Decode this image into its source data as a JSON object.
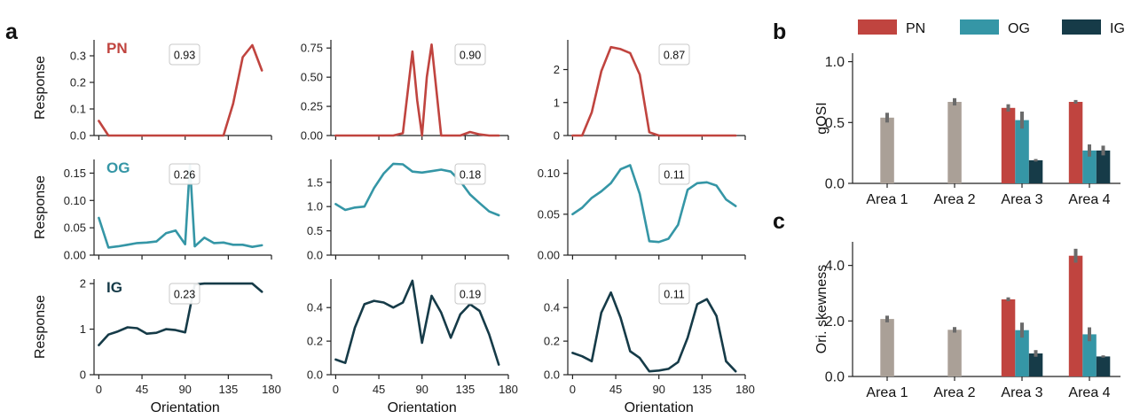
{
  "panel_labels": [
    "a",
    "b",
    "c"
  ],
  "colors": {
    "PN": "#c0443f",
    "OG": "#3596a6",
    "IG": "#163b48",
    "area": "#aaa097",
    "err": "#6b6b6b",
    "axis": "#222222"
  },
  "chart_data": [
    {
      "id": "a-PN-1",
      "type": "line",
      "row_label": "PN",
      "annotation": "0.93",
      "color": "PN",
      "x": [
        0,
        10,
        20,
        30,
        40,
        50,
        60,
        70,
        80,
        90,
        100,
        110,
        120,
        130,
        140,
        150,
        160,
        170
      ],
      "y": [
        0.055,
        0,
        0,
        0,
        0,
        0,
        0,
        0,
        0,
        0,
        0,
        0,
        0,
        0,
        0.12,
        0.295,
        0.34,
        0.245
      ],
      "ylim": [
        0,
        0.36
      ],
      "yticks": [
        0.0,
        0.1,
        0.2,
        0.3
      ],
      "ytick_labels": [
        "0.0",
        "0.1",
        "0.2",
        "0.3"
      ],
      "xlim": [
        -5,
        180
      ],
      "xticks": [
        0,
        45,
        90,
        135,
        180
      ],
      "ylabel": "Response",
      "xlabel": ""
    },
    {
      "id": "a-PN-2",
      "type": "line",
      "annotation": "0.90",
      "color": "PN",
      "x": [
        0,
        10,
        20,
        30,
        40,
        50,
        60,
        70,
        80,
        85,
        90,
        95,
        100,
        110,
        120,
        130,
        140,
        150,
        160,
        170
      ],
      "y": [
        0,
        0,
        0,
        0,
        0,
        0,
        0,
        0.02,
        0.72,
        0.3,
        0,
        0.5,
        0.78,
        0,
        0,
        0,
        0.03,
        0.01,
        0,
        0
      ],
      "ylim": [
        0,
        0.82
      ],
      "yticks": [
        0,
        0.25,
        0.5,
        0.75
      ],
      "ytick_labels": [
        "0.00",
        "0.25",
        "0.50",
        "0.75"
      ],
      "xlim": [
        -5,
        180
      ],
      "xticks": [
        0,
        45,
        90,
        135,
        180
      ],
      "ylabel": "",
      "xlabel": ""
    },
    {
      "id": "a-PN-3",
      "type": "line",
      "annotation": "0.87",
      "color": "PN",
      "x": [
        0,
        10,
        20,
        30,
        40,
        50,
        60,
        70,
        80,
        90,
        100,
        110,
        120,
        130,
        140,
        150,
        160,
        170
      ],
      "y": [
        0,
        0,
        0.7,
        1.95,
        2.68,
        2.62,
        2.5,
        1.85,
        0.1,
        0,
        0,
        0,
        0,
        0,
        0,
        0,
        0,
        0
      ],
      "ylim": [
        0,
        2.9
      ],
      "yticks": [
        0,
        1,
        2
      ],
      "ytick_labels": [
        "0",
        "1",
        "2"
      ],
      "xlim": [
        -5,
        180
      ],
      "xticks": [
        0,
        45,
        90,
        135,
        180
      ],
      "ylabel": "",
      "xlabel": ""
    },
    {
      "id": "a-OG-1",
      "type": "line",
      "row_label": "OG",
      "annotation": "0.26",
      "color": "OG",
      "x": [
        0,
        10,
        20,
        30,
        40,
        50,
        60,
        70,
        80,
        90,
        95,
        100,
        110,
        120,
        130,
        140,
        150,
        160,
        170
      ],
      "y": [
        0.068,
        0.014,
        0.016,
        0.019,
        0.022,
        0.023,
        0.025,
        0.04,
        0.045,
        0.02,
        0.165,
        0.016,
        0.032,
        0.022,
        0.023,
        0.019,
        0.019,
        0.015,
        0.018
      ],
      "ylim": [
        0,
        0.175
      ],
      "yticks": [
        0,
        0.05,
        0.1,
        0.15
      ],
      "ytick_labels": [
        "0.00",
        "0.05",
        "0.10",
        "0.15"
      ],
      "xlim": [
        -5,
        180
      ],
      "xticks": [
        0,
        45,
        90,
        135,
        180
      ],
      "ylabel": "Response",
      "xlabel": ""
    },
    {
      "id": "a-OG-2",
      "type": "line",
      "annotation": "0.18",
      "color": "OG",
      "x": [
        0,
        10,
        20,
        30,
        40,
        50,
        60,
        70,
        80,
        90,
        100,
        110,
        120,
        130,
        140,
        150,
        160,
        170
      ],
      "y": [
        1.05,
        0.93,
        0.98,
        1.0,
        1.38,
        1.68,
        1.88,
        1.87,
        1.72,
        1.7,
        1.73,
        1.76,
        1.72,
        1.52,
        1.25,
        1.07,
        0.9,
        0.82
      ],
      "ylim": [
        0,
        1.97
      ],
      "yticks": [
        0,
        0.5,
        1.0,
        1.5
      ],
      "ytick_labels": [
        "0.0",
        "0.5",
        "1.0",
        "1.5"
      ],
      "xlim": [
        -5,
        180
      ],
      "xticks": [
        0,
        45,
        90,
        135,
        180
      ],
      "ylabel": "",
      "xlabel": ""
    },
    {
      "id": "a-OG-3",
      "type": "line",
      "annotation": "0.11",
      "color": "OG",
      "x": [
        0,
        10,
        20,
        30,
        40,
        50,
        60,
        70,
        80,
        90,
        100,
        110,
        120,
        130,
        140,
        150,
        160,
        170
      ],
      "y": [
        0.05,
        0.058,
        0.07,
        0.078,
        0.088,
        0.105,
        0.11,
        0.075,
        0.017,
        0.016,
        0.02,
        0.037,
        0.08,
        0.088,
        0.089,
        0.085,
        0.068,
        0.06
      ],
      "ylim": [
        0,
        0.117
      ],
      "yticks": [
        0,
        0.05,
        0.1
      ],
      "ytick_labels": [
        "0.00",
        "0.05",
        "0.10"
      ],
      "xlim": [
        -5,
        180
      ],
      "xticks": [
        0,
        45,
        90,
        135,
        180
      ],
      "ylabel": "",
      "xlabel": ""
    },
    {
      "id": "a-IG-1",
      "type": "line",
      "row_label": "IG",
      "annotation": "0.23",
      "color": "IG",
      "x": [
        0,
        10,
        20,
        30,
        40,
        50,
        60,
        70,
        80,
        90,
        100,
        110,
        120,
        130,
        140,
        150,
        160,
        170
      ],
      "y": [
        0.65,
        0.88,
        0.95,
        1.04,
        1.02,
        0.9,
        0.92,
        1.0,
        0.98,
        0.93,
        1.98,
        2.0,
        2.0,
        2.0,
        2.0,
        2.0,
        2.0,
        1.82
      ],
      "ylim": [
        0,
        2.1
      ],
      "yticks": [
        0,
        1,
        2
      ],
      "ytick_labels": [
        "0",
        "1",
        "2"
      ],
      "xlim": [
        -5,
        180
      ],
      "xticks": [
        0,
        45,
        90,
        135,
        180
      ],
      "xtick_labels": [
        "0",
        "45",
        "90",
        "135",
        "180"
      ],
      "ylabel": "Response",
      "xlabel": "Orientation"
    },
    {
      "id": "a-IG-2",
      "type": "line",
      "annotation": "0.19",
      "color": "IG",
      "x": [
        0,
        10,
        20,
        30,
        40,
        50,
        60,
        70,
        80,
        90,
        100,
        110,
        120,
        130,
        140,
        150,
        160,
        170
      ],
      "y": [
        0.09,
        0.07,
        0.28,
        0.42,
        0.44,
        0.43,
        0.4,
        0.43,
        0.56,
        0.19,
        0.47,
        0.37,
        0.22,
        0.36,
        0.42,
        0.38,
        0.24,
        0.06
      ],
      "ylim": [
        0,
        0.57
      ],
      "yticks": [
        0,
        0.2,
        0.4
      ],
      "ytick_labels": [
        "0.0",
        "0.2",
        "0.4"
      ],
      "xlim": [
        -5,
        180
      ],
      "xticks": [
        0,
        45,
        90,
        135,
        180
      ],
      "xtick_labels": [
        "0",
        "45",
        "90",
        "135",
        "180"
      ],
      "ylabel": "",
      "xlabel": "Orientation"
    },
    {
      "id": "a-IG-3",
      "type": "line",
      "annotation": "0.11",
      "color": "IG",
      "x": [
        0,
        10,
        20,
        30,
        40,
        50,
        60,
        70,
        80,
        90,
        100,
        110,
        120,
        130,
        140,
        150,
        160,
        170
      ],
      "y": [
        0.13,
        0.11,
        0.08,
        0.37,
        0.49,
        0.34,
        0.14,
        0.1,
        0.02,
        0.025,
        0.035,
        0.075,
        0.22,
        0.42,
        0.45,
        0.35,
        0.08,
        0.02
      ],
      "ylim": [
        0,
        0.57
      ],
      "yticks": [
        0,
        0.2,
        0.4
      ],
      "ytick_labels": [
        "0.0",
        "0.2",
        "0.4"
      ],
      "xlim": [
        -5,
        180
      ],
      "xticks": [
        0,
        45,
        90,
        135,
        180
      ],
      "xtick_labels": [
        "0",
        "45",
        "90",
        "135",
        "180"
      ],
      "ylabel": "",
      "xlabel": "Orientation"
    },
    {
      "id": "b",
      "type": "bar",
      "ylabel": "gOSI",
      "categories": [
        "Area 1",
        "Area 2",
        "Area 3",
        "Area 4"
      ],
      "legend": [
        "PN",
        "OG",
        "IG"
      ],
      "legend_placement": "top",
      "ylim": [
        0,
        1.07
      ],
      "yticks": [
        0,
        0.5,
        1.0
      ],
      "ytick_labels": [
        "0.0",
        "0.5",
        "1.0"
      ],
      "series": [
        {
          "name": "",
          "color": "area",
          "values": [
            0.54,
            0.67,
            null,
            null
          ],
          "err": [
            0.04,
            0.03,
            null,
            null
          ]
        },
        {
          "name": "PN",
          "color": "PN",
          "values": [
            null,
            null,
            0.62,
            0.67
          ],
          "err": [
            null,
            null,
            0.03,
            0.015
          ]
        },
        {
          "name": "OG",
          "color": "OG",
          "values": [
            null,
            null,
            0.52,
            0.27
          ],
          "err": [
            null,
            null,
            0.07,
            0.05
          ]
        },
        {
          "name": "IG",
          "color": "IG",
          "values": [
            null,
            null,
            0.19,
            0.27
          ],
          "err": [
            null,
            null,
            0.01,
            0.04
          ]
        }
      ]
    },
    {
      "id": "c",
      "type": "bar",
      "ylabel": "Ori. skewness",
      "categories": [
        "Area 1",
        "Area 2",
        "Area 3",
        "Area 4"
      ],
      "ylim": [
        0,
        4.85
      ],
      "yticks": [
        0,
        2,
        4
      ],
      "ytick_labels": [
        "0.0",
        "2.0",
        "4.0"
      ],
      "series": [
        {
          "name": "",
          "color": "area",
          "values": [
            2.07,
            1.68,
            null,
            null
          ],
          "err": [
            0.12,
            0.1,
            null,
            null
          ]
        },
        {
          "name": "PN",
          "color": "PN",
          "values": [
            null,
            null,
            2.78,
            4.35
          ],
          "err": [
            null,
            null,
            0.07,
            0.25
          ]
        },
        {
          "name": "OG",
          "color": "OG",
          "values": [
            null,
            null,
            1.67,
            1.52
          ],
          "err": [
            null,
            null,
            0.27,
            0.25
          ]
        },
        {
          "name": "IG",
          "color": "IG",
          "values": [
            null,
            null,
            0.83,
            0.72
          ],
          "err": [
            null,
            null,
            0.12,
            0.04
          ]
        }
      ]
    }
  ]
}
